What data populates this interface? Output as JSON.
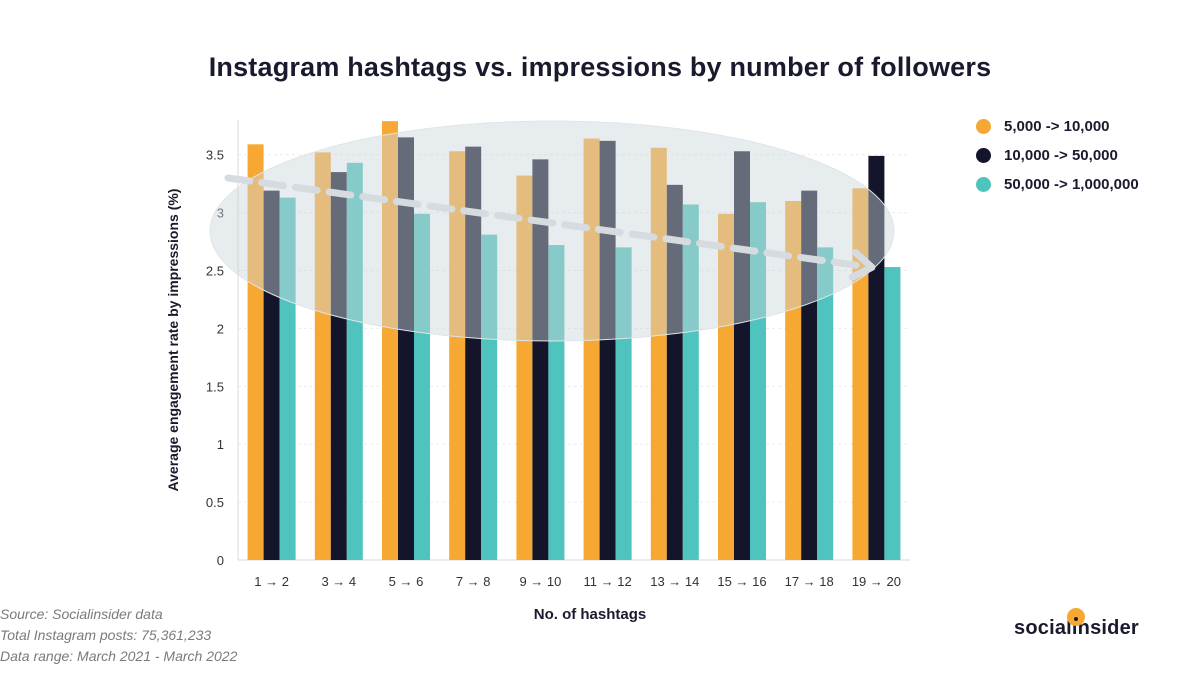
{
  "chart_data": {
    "type": "bar",
    "title": "Instagram hashtags vs. impressions by number of followers",
    "xlabel": "No. of hashtags",
    "ylabel": "Average engagement rate by impressions (%)",
    "categories": [
      "1 → 2",
      "3 → 4",
      "5 → 6",
      "7 → 8",
      "9 → 10",
      "11 → 12",
      "13 → 14",
      "15 → 16",
      "17 → 18",
      "19 → 20"
    ],
    "ylim": [
      0,
      3.8
    ],
    "yticks": [
      0,
      0.5,
      1,
      1.5,
      2,
      2.5,
      3,
      3.5
    ],
    "grid": true,
    "legend_position": "top-right",
    "series": [
      {
        "name": "5,000 -> 10,000",
        "color": "#f7a833",
        "values": [
          3.59,
          3.52,
          3.79,
          3.53,
          3.32,
          3.64,
          3.56,
          2.99,
          3.1,
          3.21
        ]
      },
      {
        "name": "10,000 -> 50,000",
        "color": "#14142b",
        "values": [
          3.19,
          3.35,
          3.65,
          3.57,
          3.46,
          3.62,
          3.24,
          3.53,
          3.19,
          3.49
        ]
      },
      {
        "name": "50,000 -> 1,000,000",
        "color": "#4fc3be",
        "values": [
          3.13,
          3.43,
          2.99,
          2.81,
          2.72,
          2.7,
          3.07,
          3.09,
          2.7,
          2.53
        ]
      }
    ],
    "annotation": "downward trend arrow over highlighted area"
  },
  "footnotes": [
    "Source: Socialinsider data",
    "Total Instagram posts: 75,361,233",
    "Data range: March 2021 - March 2022"
  ],
  "brand": "socialinsider"
}
